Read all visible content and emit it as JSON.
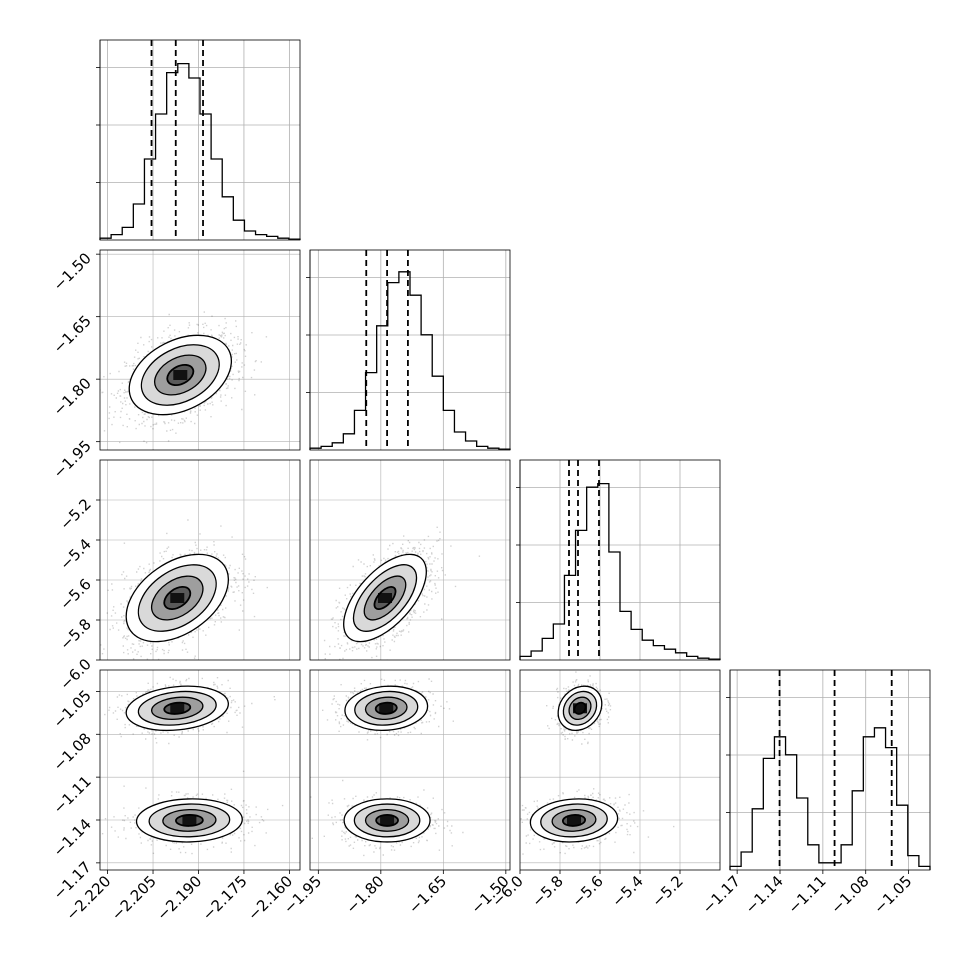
{
  "chart_data": {
    "type": "corner",
    "parameters": [
      {
        "range": [
          -2.2225,
          -2.1565
        ],
        "ticks": [
          -2.22,
          -2.205,
          -2.19,
          -2.175,
          -2.16
        ],
        "tick_labels": [
          "−2.220",
          "−2.205",
          "−2.190",
          "−2.175",
          "−2.160"
        ],
        "quantiles": [
          -2.2055,
          -2.1975,
          -2.1885
        ]
      },
      {
        "range": [
          -1.97,
          -1.49
        ],
        "ticks": [
          -1.95,
          -1.8,
          -1.65,
          -1.5
        ],
        "tick_labels": [
          "−1.95",
          "−1.80",
          "−1.65",
          "−1.50"
        ],
        "quantiles": [
          -1.835,
          -1.785,
          -1.735
        ]
      },
      {
        "range": [
          -6.0,
          -5.0
        ],
        "ticks": [
          -6.0,
          -5.8,
          -5.6,
          -5.4,
          -5.2
        ],
        "tick_labels": [
          "−6.0",
          "−5.8",
          "−5.6",
          "−5.4",
          "−5.2"
        ],
        "quantiles": [
          -5.755,
          -5.71,
          -5.605
        ]
      },
      {
        "range": [
          -1.175,
          -1.035
        ],
        "ticks": [
          -1.17,
          -1.14,
          -1.11,
          -1.08,
          -1.05
        ],
        "tick_labels": [
          "−1.17",
          "−1.14",
          "−1.11",
          "−1.08",
          "−1.05"
        ],
        "quantiles": [
          -1.1403,
          -1.1018,
          -1.0618
        ]
      }
    ],
    "histograms": [
      [
        0.01,
        0.03,
        0.07,
        0.2,
        0.45,
        0.7,
        0.93,
        0.98,
        0.9,
        0.7,
        0.45,
        0.24,
        0.11,
        0.05,
        0.03,
        0.02,
        0.01,
        0.005
      ],
      [
        0.01,
        0.02,
        0.04,
        0.09,
        0.22,
        0.43,
        0.69,
        0.93,
        0.99,
        0.86,
        0.64,
        0.41,
        0.22,
        0.1,
        0.05,
        0.02,
        0.01,
        0.005
      ],
      [
        0.02,
        0.05,
        0.12,
        0.2,
        0.47,
        0.72,
        0.96,
        0.98,
        0.6,
        0.27,
        0.17,
        0.11,
        0.08,
        0.06,
        0.04,
        0.02,
        0.01,
        0.005
      ],
      [
        0.02,
        0.1,
        0.34,
        0.62,
        0.74,
        0.64,
        0.4,
        0.14,
        0.04,
        0.04,
        0.14,
        0.44,
        0.74,
        0.79,
        0.68,
        0.36,
        0.08,
        0.02
      ]
    ],
    "pair_blobs": {
      "1_0": [
        {
          "mx": -2.196,
          "my": -1.79,
          "sx": 0.0085,
          "sy": 0.048,
          "rho": 0.35,
          "w": 1
        }
      ],
      "2_0": [
        {
          "mx": -2.197,
          "my": -5.69,
          "sx": 0.0085,
          "sy": 0.11,
          "rho": 0.42,
          "w": 1
        }
      ],
      "2_1": [
        {
          "mx": -1.79,
          "my": -5.69,
          "sx": 0.05,
          "sy": 0.11,
          "rho": 0.6,
          "w": 1
        }
      ],
      "3_0": [
        {
          "mx": -2.197,
          "my": -1.0618,
          "sx": 0.0085,
          "sy": 0.0078,
          "rho": 0.2,
          "w": 0.5
        },
        {
          "mx": -2.193,
          "my": -1.1403,
          "sx": 0.0088,
          "sy": 0.0076,
          "rho": 0.05,
          "w": 0.5
        }
      ],
      "3_1": [
        {
          "mx": -1.787,
          "my": -1.0618,
          "sx": 0.05,
          "sy": 0.0078,
          "rho": 0.1,
          "w": 0.5
        },
        {
          "mx": -1.785,
          "my": -1.1403,
          "sx": 0.052,
          "sy": 0.0076,
          "rho": 0.0,
          "w": 0.5
        }
      ],
      "3_2": [
        {
          "mx": -5.7,
          "my": -1.0618,
          "sx": 0.055,
          "sy": 0.0078,
          "rho": 0.2,
          "w": 0.5
        },
        {
          "mx": -5.73,
          "my": -1.1403,
          "sx": 0.11,
          "sy": 0.0076,
          "rho": 0.1,
          "w": 0.5
        }
      ]
    },
    "contour_levels": [
      0.12,
      0.39,
      0.68,
      0.86
    ],
    "grid": true,
    "colors": {
      "line": "#000000",
      "grid": "#b0b0b0",
      "points": "#000000"
    }
  }
}
